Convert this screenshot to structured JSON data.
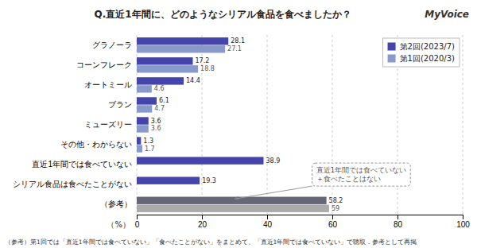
{
  "chart_data": {
    "type": "bar",
    "orientation": "horizontal",
    "title": "Q.直近1年間に、どのようなシリアル食品を食べましたか？",
    "logo": "MyVoice",
    "categories": [
      "グラノーラ",
      "コーンフレーク",
      "オートミール",
      "ブラン",
      "ミューズリー",
      "その他・わからない",
      "直近1年間では食べていない",
      "シリアル食品は食べたことがない",
      "（参考）"
    ],
    "series": [
      {
        "name": "第2回(2023/7)",
        "color": "#4444aa",
        "colors": [
          "#4444aa",
          "#4444aa",
          "#4444aa",
          "#4444aa",
          "#4444aa",
          "#4444aa",
          "#4444aa",
          "#4444aa",
          "#666677"
        ],
        "values": [
          28.1,
          17.2,
          14.4,
          6.1,
          3.6,
          1.3,
          38.9,
          19.3,
          58.2
        ]
      },
      {
        "name": "第1回(2020/3)",
        "color": "#8899cc",
        "colors": [
          "#8899cc",
          "#8899cc",
          "#8899cc",
          "#8899cc",
          "#8899cc",
          "#8899cc",
          "#8899cc",
          "#8899cc",
          "#aaaaaa"
        ],
        "values": [
          27.1,
          18.8,
          4.6,
          4.7,
          3.6,
          1.7,
          null,
          null,
          59.0
        ]
      }
    ],
    "xlabel": "（%）",
    "xlim": [
      0,
      100
    ],
    "xticks": [
      0,
      20,
      40,
      60,
      80,
      100
    ],
    "grid": true,
    "legend": "upper right",
    "data_labels": true,
    "annotation": "直近1年間では食べていない\n＋食べたことはない",
    "footnote": "（参考）第1回では「直近1年間では食べていない」「食べたことがない」をまとめて、「直近1年間では食べていない」で聴取．参考として再掲"
  }
}
